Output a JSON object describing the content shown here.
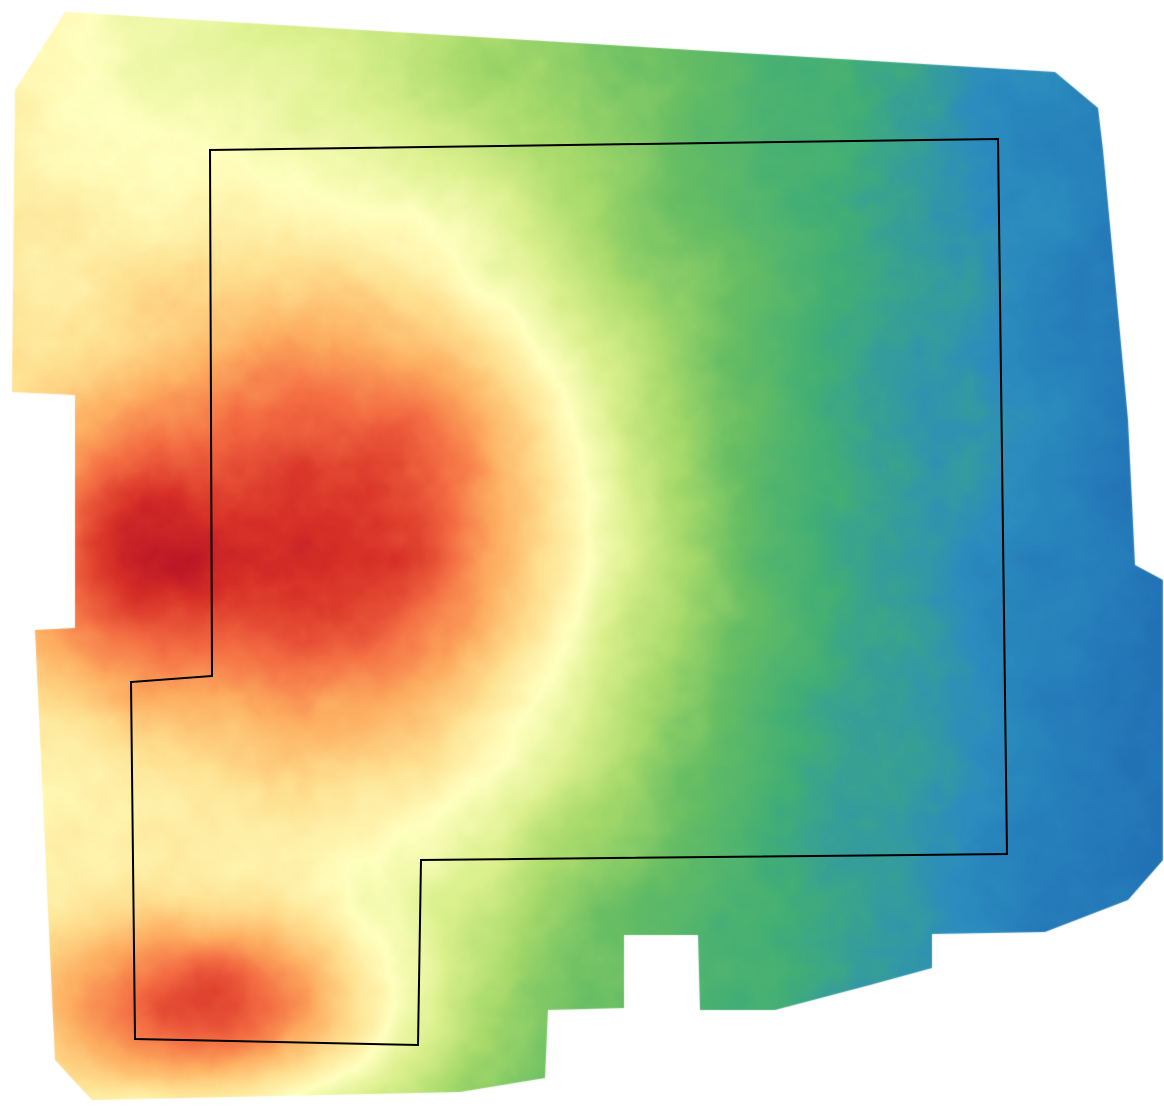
{
  "map": {
    "kind": "elevation-raster",
    "color_ramp": [
      "#a50026",
      "#d73027",
      "#f46d43",
      "#fdae61",
      "#fee090",
      "#ffffbf",
      "#d9ef8b",
      "#a6d96a",
      "#66bd63",
      "#41ae76",
      "#2b8cbe",
      "#2171b5"
    ],
    "ramp_direction": "high-red-to-low-blue",
    "boundary_color": "#000000",
    "background_color": "#ffffff",
    "has_legend": false,
    "has_labels": false
  }
}
